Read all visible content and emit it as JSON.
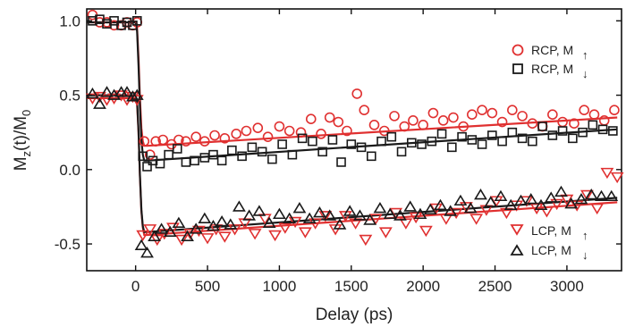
{
  "chart_data": {
    "type": "scatter",
    "title": "",
    "xlabel": "Delay (ps)",
    "ylabel_main": "M",
    "ylabel_sub1": "z",
    "ylabel_mid": "(t)/M",
    "ylabel_sub2": "0",
    "xlim": [
      -340,
      3380
    ],
    "ylim": [
      -0.68,
      1.08
    ],
    "x_ticks": [
      0,
      500,
      1000,
      1500,
      2000,
      2500,
      3000
    ],
    "y_ticks": [
      -0.5,
      0.0,
      0.5,
      1.0
    ],
    "y_tick_labels": [
      "-0.5",
      "0.0",
      "0.5",
      "1.0"
    ],
    "grid": false,
    "legend_position": "right",
    "colors": {
      "red": "#e03030",
      "black": "#1a1a1a"
    },
    "series": [
      {
        "name": "RCP, M↑",
        "legend_text": "RCP, M",
        "legend_arrow": "↑",
        "color": "#e03030",
        "marker": "circle",
        "x": [
          -300,
          -250,
          -200,
          -150,
          -100,
          -60,
          -20,
          10,
          60,
          100,
          140,
          190,
          250,
          300,
          350,
          420,
          480,
          550,
          620,
          700,
          770,
          850,
          920,
          1000,
          1070,
          1150,
          1220,
          1290,
          1350,
          1410,
          1470,
          1540,
          1590,
          1660,
          1730,
          1800,
          1870,
          1930,
          2000,
          2070,
          2140,
          2210,
          2280,
          2340,
          2410,
          2480,
          2550,
          2620,
          2690,
          2760,
          2830,
          2900,
          2970,
          3050,
          3120,
          3190,
          3260,
          3330
        ],
        "y": [
          1.04,
          0.99,
          0.99,
          0.97,
          0.97,
          0.99,
          0.97,
          0.99,
          0.19,
          0.1,
          0.19,
          0.2,
          0.17,
          0.2,
          0.19,
          0.22,
          0.19,
          0.23,
          0.21,
          0.24,
          0.26,
          0.28,
          0.22,
          0.29,
          0.26,
          0.25,
          0.34,
          0.24,
          0.35,
          0.32,
          0.26,
          0.51,
          0.4,
          0.3,
          0.26,
          0.36,
          0.29,
          0.33,
          0.3,
          0.38,
          0.33,
          0.35,
          0.29,
          0.37,
          0.4,
          0.38,
          0.32,
          0.4,
          0.36,
          0.31,
          0.29,
          0.37,
          0.32,
          0.31,
          0.4,
          0.37,
          0.33,
          0.4
        ]
      },
      {
        "name": "RCP, M↓",
        "legend_text": "RCP, M",
        "legend_arrow": "↓",
        "color": "#1a1a1a",
        "marker": "square",
        "x": [
          -300,
          -250,
          -200,
          -150,
          -100,
          -60,
          -20,
          10,
          50,
          80,
          120,
          170,
          230,
          290,
          350,
          410,
          480,
          540,
          600,
          670,
          740,
          810,
          880,
          950,
          1020,
          1090,
          1160,
          1230,
          1300,
          1370,
          1430,
          1500,
          1570,
          1640,
          1710,
          1780,
          1850,
          1920,
          1990,
          2060,
          2130,
          2200,
          2270,
          2340,
          2410,
          2480,
          2550,
          2620,
          2690,
          2760,
          2830,
          2900,
          2970,
          3040,
          3110,
          3180,
          3250,
          3320
        ],
        "y": [
          1.0,
          1.01,
          0.98,
          1.0,
          0.97,
          0.99,
          0.97,
          1.0,
          0.09,
          0.02,
          0.06,
          0.04,
          0.1,
          0.14,
          0.05,
          0.06,
          0.08,
          0.1,
          0.06,
          0.13,
          0.09,
          0.15,
          0.12,
          0.07,
          0.17,
          0.1,
          0.21,
          0.19,
          0.12,
          0.2,
          0.05,
          0.17,
          0.15,
          0.09,
          0.19,
          0.22,
          0.12,
          0.18,
          0.17,
          0.19,
          0.24,
          0.15,
          0.22,
          0.2,
          0.17,
          0.23,
          0.19,
          0.25,
          0.21,
          0.19,
          0.29,
          0.23,
          0.26,
          0.21,
          0.25,
          0.3,
          0.27,
          0.26
        ]
      },
      {
        "name": "LCP, M↑",
        "legend_text": "LCP, M",
        "legend_arrow": "↑",
        "color": "#e03030",
        "marker": "triangle-down",
        "x": [
          -300,
          -250,
          -200,
          -150,
          -100,
          -60,
          -20,
          10,
          50,
          100,
          150,
          200,
          260,
          320,
          380,
          440,
          500,
          560,
          620,
          690,
          760,
          830,
          900,
          970,
          1040,
          1110,
          1180,
          1250,
          1320,
          1390,
          1460,
          1530,
          1600,
          1670,
          1740,
          1810,
          1880,
          1950,
          2020,
          2090,
          2160,
          2230,
          2300,
          2370,
          2440,
          2510,
          2580,
          2650,
          2720,
          2790,
          2860,
          2930,
          3000,
          3070,
          3140,
          3210,
          3280,
          3350
        ],
        "y": [
          0.48,
          0.49,
          0.47,
          0.48,
          0.5,
          0.47,
          0.49,
          0.47,
          -0.44,
          -0.4,
          -0.47,
          -0.43,
          -0.39,
          -0.47,
          -0.43,
          -0.41,
          -0.46,
          -0.4,
          -0.45,
          -0.4,
          -0.36,
          -0.43,
          -0.33,
          -0.44,
          -0.39,
          -0.35,
          -0.42,
          -0.36,
          -0.31,
          -0.4,
          -0.31,
          -0.36,
          -0.47,
          -0.33,
          -0.42,
          -0.29,
          -0.36,
          -0.32,
          -0.41,
          -0.26,
          -0.33,
          -0.29,
          -0.25,
          -0.33,
          -0.27,
          -0.21,
          -0.29,
          -0.24,
          -0.21,
          -0.26,
          -0.28,
          -0.23,
          -0.2,
          -0.24,
          -0.17,
          -0.26,
          -0.02,
          -0.05
        ]
      },
      {
        "name": "LCP, M↓",
        "legend_text": "LCP, M",
        "legend_arrow": "↓",
        "color": "#1a1a1a",
        "marker": "triangle-up",
        "x": [
          -300,
          -250,
          -200,
          -150,
          -100,
          -60,
          -20,
          10,
          40,
          80,
          130,
          180,
          240,
          300,
          360,
          420,
          480,
          540,
          600,
          660,
          720,
          790,
          860,
          930,
          1000,
          1070,
          1140,
          1210,
          1280,
          1350,
          1420,
          1490,
          1560,
          1630,
          1700,
          1770,
          1840,
          1910,
          1980,
          2050,
          2120,
          2190,
          2260,
          2330,
          2400,
          2470,
          2540,
          2610,
          2680,
          2750,
          2820,
          2890,
          2960,
          3030,
          3100,
          3170,
          3240,
          3310
        ],
        "y": [
          0.51,
          0.44,
          0.52,
          0.5,
          0.52,
          0.52,
          0.49,
          0.5,
          -0.51,
          -0.56,
          -0.45,
          -0.4,
          -0.42,
          -0.36,
          -0.45,
          -0.4,
          -0.33,
          -0.38,
          -0.35,
          -0.37,
          -0.25,
          -0.31,
          -0.28,
          -0.36,
          -0.3,
          -0.33,
          -0.26,
          -0.33,
          -0.29,
          -0.31,
          -0.37,
          -0.28,
          -0.31,
          -0.34,
          -0.26,
          -0.3,
          -0.31,
          -0.25,
          -0.3,
          -0.27,
          -0.24,
          -0.28,
          -0.21,
          -0.26,
          -0.17,
          -0.22,
          -0.18,
          -0.24,
          -0.21,
          -0.2,
          -0.24,
          -0.19,
          -0.15,
          -0.23,
          -0.2,
          -0.17,
          -0.18,
          -0.18
        ]
      }
    ],
    "fit_lines": [
      {
        "color": "#e03030",
        "x": [
          -340,
          -20,
          0,
          10,
          20,
          30,
          40,
          50,
          60,
          80,
          3350
        ],
        "y": [
          0.99,
          0.99,
          0.99,
          0.95,
          0.75,
          0.48,
          0.28,
          0.19,
          0.16,
          0.16,
          0.35
        ]
      },
      {
        "color": "#1a1a1a",
        "x": [
          -340,
          -20,
          0,
          10,
          20,
          30,
          40,
          50,
          60,
          80,
          3350
        ],
        "y": [
          0.99,
          0.99,
          0.99,
          0.93,
          0.7,
          0.42,
          0.2,
          0.1,
          0.06,
          0.06,
          0.27
        ]
      },
      {
        "color": "#e03030",
        "x": [
          -340,
          -20,
          0,
          10,
          20,
          30,
          40,
          50,
          60,
          80,
          3350
        ],
        "y": [
          0.48,
          0.48,
          0.48,
          0.44,
          0.25,
          -0.05,
          -0.28,
          -0.39,
          -0.44,
          -0.44,
          -0.22
        ]
      },
      {
        "color": "#1a1a1a",
        "x": [
          -340,
          -20,
          0,
          10,
          20,
          30,
          40,
          50,
          60,
          80,
          3350
        ],
        "y": [
          0.5,
          0.5,
          0.5,
          0.46,
          0.26,
          -0.04,
          -0.27,
          -0.38,
          -0.42,
          -0.42,
          -0.19
        ]
      }
    ]
  }
}
